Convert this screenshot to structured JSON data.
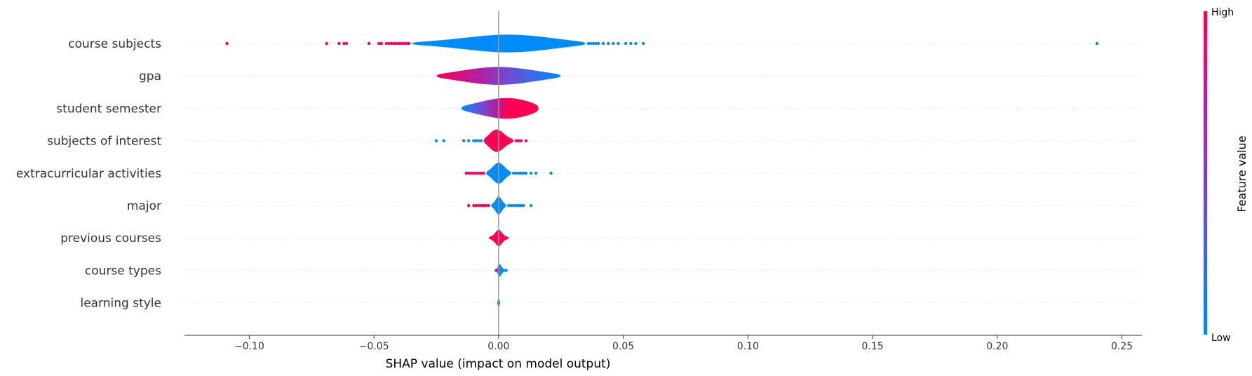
{
  "chart_data": {
    "type": "violin",
    "xlabel": "SHAP value (impact on model output)",
    "xlim": [
      -0.126,
      0.258
    ],
    "xticks": [
      -0.1,
      -0.05,
      0.0,
      0.05,
      0.1,
      0.15,
      0.2,
      0.25
    ],
    "xtick_labels": [
      "−0.10",
      "−0.05",
      "0.00",
      "0.05",
      "0.10",
      "0.15",
      "0.20",
      "0.25"
    ],
    "colorbar": {
      "title": "Feature value",
      "high_label": "High",
      "low_label": "Low",
      "high_color": "#ff0052",
      "low_color": "#008bfb"
    },
    "features": [
      {
        "name": "course subjects",
        "violin_range": [
          -0.035,
          0.035
        ],
        "violin_peak": 0.005,
        "violin_spread": 0.018,
        "violin_halfwidth": 0.55,
        "color_trend": "low",
        "outliers_high": [
          -0.109,
          -0.069,
          -0.064,
          -0.062,
          -0.061,
          -0.052,
          -0.048,
          -0.047,
          -0.045,
          -0.044,
          -0.043,
          -0.042,
          -0.041,
          -0.04,
          -0.039,
          -0.038,
          -0.037,
          -0.036
        ],
        "outliers_low": [
          0.036,
          0.037,
          0.038,
          0.039,
          0.04,
          0.042,
          0.044,
          0.046,
          0.048,
          0.051,
          0.053,
          0.055,
          0.058,
          0.24
        ]
      },
      {
        "name": "gpa",
        "violin_range": [
          -0.025,
          0.025
        ],
        "violin_peak": 0.0,
        "violin_spread": 0.015,
        "violin_halfwidth": 0.55,
        "color_trend": "high-to-low",
        "outliers_high": [],
        "outliers_low": []
      },
      {
        "name": "student semester",
        "violin_range": [
          -0.015,
          0.016
        ],
        "violin_peak": 0.005,
        "violin_spread": 0.012,
        "violin_halfwidth": 0.65,
        "color_trend": "low-to-high",
        "outliers_high": [],
        "outliers_low": []
      },
      {
        "name": "subjects of interest",
        "violin_range": [
          -0.006,
          0.006
        ],
        "violin_peak": -0.001,
        "violin_spread": 0.0028,
        "violin_halfwidth": 0.7,
        "color_trend": "high",
        "outliers_high": [
          0.007,
          0.008,
          0.009,
          0.011
        ],
        "outliers_low": [
          -0.025,
          -0.022,
          -0.014,
          -0.012,
          -0.01,
          -0.009,
          -0.008,
          -0.007
        ]
      },
      {
        "name": "extracurricular activities",
        "violin_range": [
          -0.005,
          0.005
        ],
        "violin_peak": 0.0,
        "violin_spread": 0.0022,
        "violin_halfwidth": 0.65,
        "color_trend": "low",
        "outliers_high": [
          -0.013,
          -0.012,
          -0.011,
          -0.01,
          -0.009,
          -0.008,
          -0.007,
          -0.006
        ],
        "outliers_low": [
          0.006,
          0.007,
          0.008,
          0.009,
          0.01,
          0.011,
          0.013,
          0.015,
          0.021
        ]
      },
      {
        "name": "major",
        "violin_range": [
          -0.003,
          0.003
        ],
        "violin_peak": 0.0,
        "violin_spread": 0.0012,
        "violin_halfwidth": 0.55,
        "color_trend": "low",
        "outliers_high": [
          -0.012,
          -0.01,
          -0.009,
          -0.008,
          -0.007,
          -0.006,
          -0.005,
          -0.004
        ],
        "outliers_low": [
          0.004,
          0.005,
          0.006,
          0.007,
          0.008,
          0.009,
          0.01,
          0.013
        ]
      },
      {
        "name": "previous courses",
        "violin_range": [
          -0.004,
          0.004
        ],
        "violin_peak": 0.0,
        "violin_spread": 0.0013,
        "violin_halfwidth": 0.5,
        "color_trend": "high",
        "outliers_high": [],
        "outliers_low": []
      },
      {
        "name": "course types",
        "violin_range": [
          -0.001,
          0.003
        ],
        "violin_peak": 0.0003,
        "violin_spread": 0.0007,
        "violin_halfwidth": 0.4,
        "color_trend": "low",
        "outliers_high": [
          -0.001
        ],
        "outliers_low": [
          0.003
        ]
      },
      {
        "name": "learning style",
        "violin_range": [
          -0.0006,
          0.0006
        ],
        "violin_peak": 0.0,
        "violin_spread": 0.0003,
        "violin_halfwidth": 0.3,
        "color_trend": "low",
        "outliers_high": [],
        "outliers_low": []
      }
    ]
  }
}
